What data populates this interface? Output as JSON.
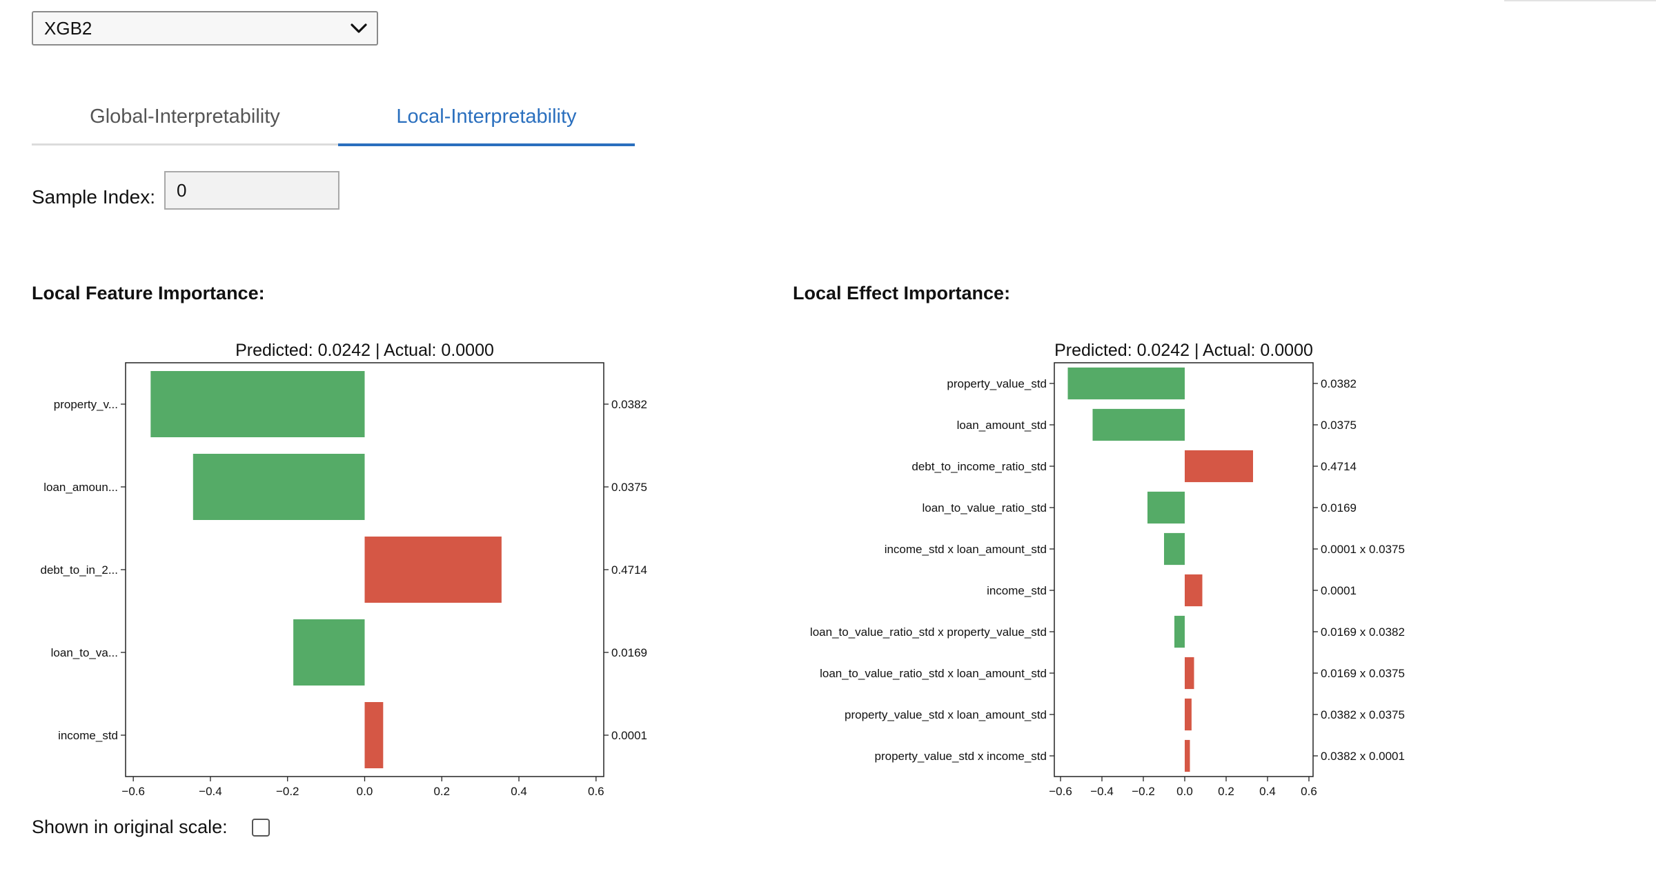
{
  "model_select": {
    "value": "XGB2"
  },
  "tabs": [
    {
      "label": "Global-Interpretability",
      "active": false
    },
    {
      "label": "Local-Interpretability",
      "active": true
    }
  ],
  "sample": {
    "label": "Sample Index:",
    "value": "0"
  },
  "feature_section": {
    "title": "Local Feature Importance:"
  },
  "effect_section": {
    "title": "Local Effect Importance:"
  },
  "original_scale": {
    "label": "Shown in original scale:",
    "checked": false
  },
  "colors": {
    "negative": "#55ab67",
    "positive": "#d55745",
    "accent": "#2a6fbe"
  },
  "chart_data": [
    {
      "type": "bar",
      "orientation": "horizontal",
      "title": "Predicted: 0.0242 | Actual: 0.0000",
      "categories": [
        "property_v...",
        "loan_amoun...",
        "debt_to_in_2...",
        "loan_to_va...",
        "income_std"
      ],
      "values": [
        -0.555,
        -0.445,
        0.355,
        -0.185,
        0.048
      ],
      "right_labels": [
        "0.0382",
        "0.0375",
        "0.4714",
        "0.0169",
        "0.0001"
      ],
      "xlim": [
        -0.62,
        0.62
      ],
      "xticks": [
        "-0.6",
        "-0.4",
        "-0.2",
        "0.0",
        "0.2",
        "0.4",
        "0.6"
      ],
      "grid": false
    },
    {
      "type": "bar",
      "orientation": "horizontal",
      "title": "Predicted: 0.0242 | Actual: 0.0000",
      "categories": [
        "property_value_std",
        "loan_amount_std",
        "debt_to_income_ratio_std",
        "loan_to_value_ratio_std",
        "income_std x loan_amount_std",
        "income_std",
        "loan_to_value_ratio_std x property_value_std",
        "loan_to_value_ratio_std x loan_amount_std",
        "property_value_std x loan_amount_std",
        "property_value_std x income_std"
      ],
      "values": [
        -0.565,
        -0.445,
        0.33,
        -0.18,
        -0.1,
        0.085,
        -0.05,
        0.045,
        0.033,
        0.025
      ],
      "right_labels": [
        "0.0382",
        "0.0375",
        "0.4714",
        "0.0169",
        "0.0001 x 0.0375",
        "0.0001",
        "0.0169 x 0.0382",
        "0.0169 x 0.0375",
        "0.0382 x 0.0375",
        "0.0382 x 0.0001"
      ],
      "xlim": [
        -0.63,
        0.62
      ],
      "xticks": [
        "-0.6",
        "-0.4",
        "-0.2",
        "0.0",
        "0.2",
        "0.4",
        "0.6"
      ],
      "grid": false
    }
  ]
}
